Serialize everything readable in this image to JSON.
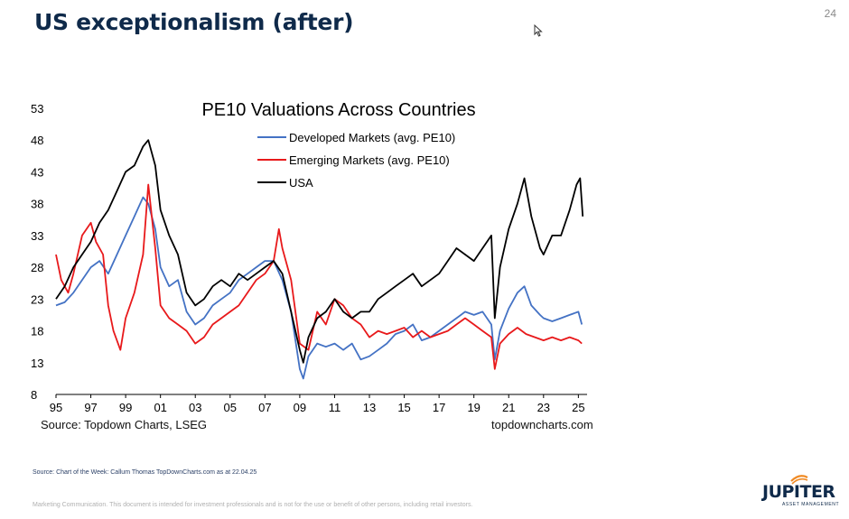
{
  "slide": {
    "title": "US exceptionalism (after)",
    "page_number": "24",
    "footer_source": "Source: Chart of the Week: Callum Thomas TopDownCharts.com  as at 22.04.25",
    "disclaimer": "Marketing Communication. This document is intended for investment professionals and is not for the use or benefit of other persons, including retail investors.",
    "logo_text": "JUPITER",
    "logo_subtext": "ASSET MANAGEMENT",
    "logo_icon": "jupiter-swirl-icon",
    "logo_color": "#f08a24",
    "cursor_icon": "mouse-pointer-icon"
  },
  "chart_data": {
    "type": "line",
    "title": "PE10 Valuations Across Countries",
    "source": "Source: Topdown Charts, LSEG",
    "site": "topdowncharts.com",
    "xlabel": "",
    "ylabel": "",
    "x_ticks": [
      "95",
      "97",
      "99",
      "01",
      "03",
      "05",
      "07",
      "09",
      "11",
      "13",
      "15",
      "17",
      "19",
      "21",
      "23",
      "25"
    ],
    "y_ticks": [
      53,
      48,
      43,
      38,
      33,
      28,
      23,
      18,
      13,
      8
    ],
    "xlim": [
      1995,
      2025.5
    ],
    "ylim": [
      8,
      53
    ],
    "grid": false,
    "legend_position": "top-center",
    "series": [
      {
        "name": "Developed Markets (avg. PE10)",
        "color": "#4472c4",
        "x": [
          1995.0,
          1995.5,
          1996.0,
          1996.5,
          1997.0,
          1997.5,
          1998.0,
          1998.5,
          1999.0,
          1999.5,
          2000.0,
          2000.3,
          2000.7,
          2001.0,
          2001.5,
          2002.0,
          2002.5,
          2003.0,
          2003.5,
          2004.0,
          2004.5,
          2005.0,
          2005.5,
          2006.0,
          2006.5,
          2007.0,
          2007.5,
          2008.0,
          2008.5,
          2009.0,
          2009.2,
          2009.5,
          2010.0,
          2010.5,
          2011.0,
          2011.5,
          2012.0,
          2012.5,
          2013.0,
          2013.5,
          2014.0,
          2014.5,
          2015.0,
          2015.5,
          2016.0,
          2016.5,
          2017.0,
          2017.5,
          2018.0,
          2018.5,
          2019.0,
          2019.5,
          2020.0,
          2020.2,
          2020.5,
          2021.0,
          2021.5,
          2021.9,
          2022.3,
          2022.8,
          2023.0,
          2023.5,
          2024.0,
          2024.5,
          2025.0,
          2025.2
        ],
        "y": [
          22,
          22.5,
          24,
          26,
          28,
          29,
          27,
          30,
          33,
          36,
          39,
          38,
          34,
          28,
          25,
          26,
          21,
          19,
          20,
          22,
          23,
          24,
          26,
          27,
          28,
          29,
          29,
          26,
          21,
          12,
          10.5,
          14,
          16,
          15.5,
          16,
          15,
          16,
          13.5,
          14,
          15,
          16,
          17.5,
          18,
          19,
          16.5,
          17,
          18,
          19,
          20,
          21,
          20.5,
          21,
          19,
          13.5,
          18,
          21.5,
          24,
          25,
          22,
          20.5,
          20,
          19.5,
          20,
          20.5,
          21,
          19
        ]
      },
      {
        "name": "Emerging Markets (avg. PE10)",
        "color": "#e8191b",
        "x": [
          1995.0,
          1995.3,
          1995.7,
          1996.0,
          1996.5,
          1997.0,
          1997.3,
          1997.7,
          1998.0,
          1998.3,
          1998.7,
          1999.0,
          1999.5,
          2000.0,
          2000.3,
          2000.7,
          2001.0,
          2001.5,
          2002.0,
          2002.5,
          2003.0,
          2003.5,
          2004.0,
          2004.5,
          2005.0,
          2005.5,
          2006.0,
          2006.5,
          2007.0,
          2007.5,
          2007.8,
          2008.0,
          2008.5,
          2009.0,
          2009.5,
          2010.0,
          2010.5,
          2011.0,
          2011.5,
          2012.0,
          2012.5,
          2013.0,
          2013.5,
          2014.0,
          2014.5,
          2015.0,
          2015.5,
          2016.0,
          2016.5,
          2017.0,
          2017.5,
          2018.0,
          2018.5,
          2019.0,
          2019.5,
          2020.0,
          2020.2,
          2020.5,
          2021.0,
          2021.5,
          2022.0,
          2022.5,
          2023.0,
          2023.5,
          2024.0,
          2024.5,
          2025.0,
          2025.2
        ],
        "y": [
          30,
          26,
          24,
          27,
          33,
          35,
          32,
          30,
          22,
          18,
          15,
          20,
          24,
          30,
          41,
          31,
          22,
          20,
          19,
          18,
          16,
          17,
          19,
          20,
          21,
          22,
          24,
          26,
          27,
          29,
          34,
          31,
          26,
          16,
          15,
          21,
          19,
          23,
          22,
          20,
          19,
          17,
          18,
          17.5,
          18,
          18.5,
          17,
          18,
          17,
          17.5,
          18,
          19,
          20,
          19,
          18,
          17,
          12,
          16,
          17.5,
          18.5,
          17.5,
          17,
          16.5,
          17,
          16.5,
          17,
          16.5,
          16
        ]
      },
      {
        "name": "USA",
        "color": "#000000",
        "x": [
          1995.0,
          1995.5,
          1996.0,
          1996.5,
          1997.0,
          1997.5,
          1998.0,
          1998.5,
          1999.0,
          1999.5,
          2000.0,
          2000.3,
          2000.7,
          2001.0,
          2001.5,
          2002.0,
          2002.5,
          2003.0,
          2003.5,
          2004.0,
          2004.5,
          2005.0,
          2005.5,
          2006.0,
          2006.5,
          2007.0,
          2007.5,
          2008.0,
          2008.5,
          2009.0,
          2009.2,
          2009.5,
          2010.0,
          2010.5,
          2011.0,
          2011.5,
          2012.0,
          2012.5,
          2013.0,
          2013.5,
          2014.0,
          2014.5,
          2015.0,
          2015.5,
          2016.0,
          2016.5,
          2017.0,
          2017.5,
          2018.0,
          2018.5,
          2019.0,
          2019.5,
          2020.0,
          2020.2,
          2020.5,
          2021.0,
          2021.5,
          2021.9,
          2022.3,
          2022.8,
          2023.0,
          2023.5,
          2024.0,
          2024.5,
          2024.9,
          2025.1,
          2025.25
        ],
        "y": [
          23,
          25,
          28,
          30,
          32,
          35,
          37,
          40,
          43,
          44,
          47,
          48,
          44,
          37,
          33,
          30,
          24,
          22,
          23,
          25,
          26,
          25,
          27,
          26,
          27,
          28,
          29,
          27,
          21,
          15,
          13,
          17,
          20,
          21,
          23,
          21,
          20,
          21,
          21,
          23,
          24,
          25,
          26,
          27,
          25,
          26,
          27,
          29,
          31,
          30,
          29,
          31,
          33,
          20,
          28,
          34,
          38,
          42,
          36,
          31,
          30,
          33,
          33,
          37,
          41,
          42,
          36
        ]
      }
    ]
  }
}
